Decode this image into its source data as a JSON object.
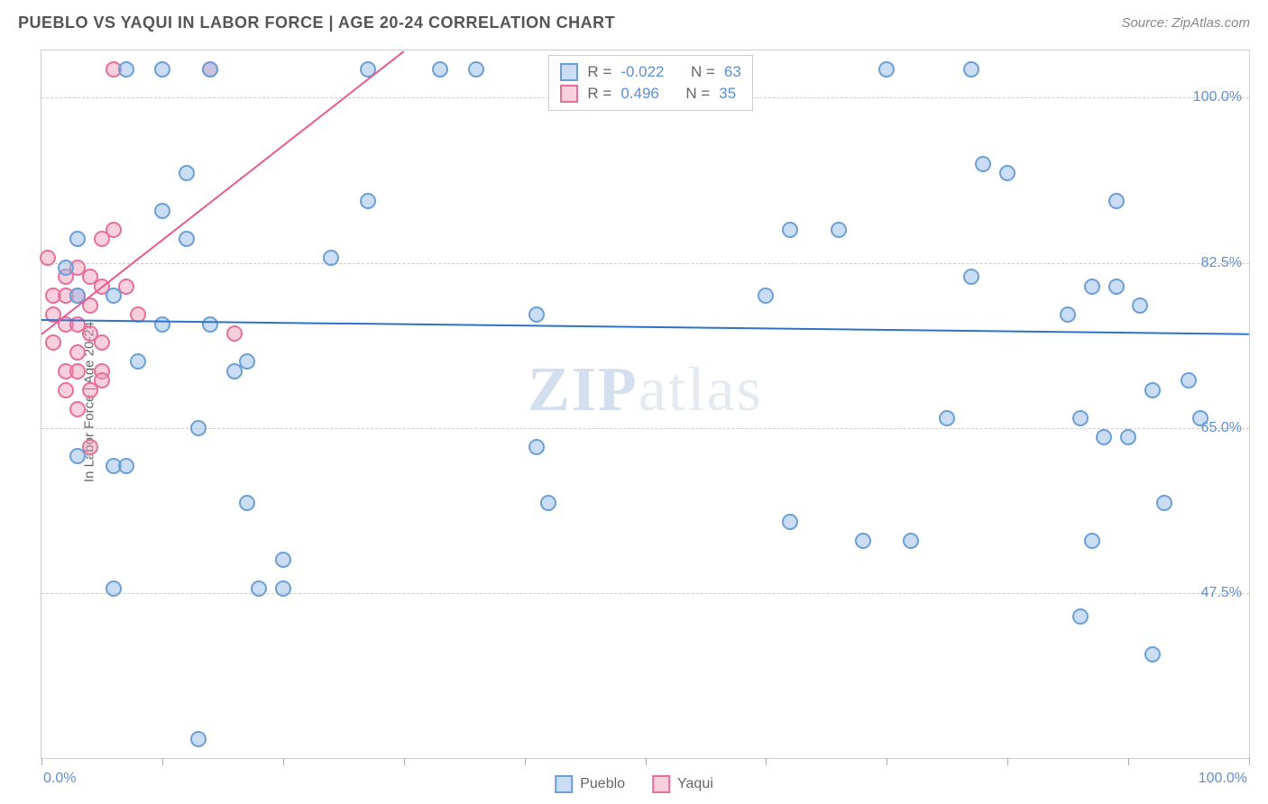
{
  "header": {
    "title": "PUEBLO VS YAQUI IN LABOR FORCE | AGE 20-24 CORRELATION CHART",
    "source": "Source: ZipAtlas.com"
  },
  "axes": {
    "y_label": "In Labor Force | Age 20-24",
    "x_min_label": "0.0%",
    "x_max_label": "100.0%",
    "xlim": [
      0,
      100
    ],
    "ylim": [
      30,
      105
    ],
    "y_ticks": [
      {
        "value": 100.0,
        "label": "100.0%"
      },
      {
        "value": 82.5,
        "label": "82.5%"
      },
      {
        "value": 65.0,
        "label": "65.0%"
      },
      {
        "value": 47.5,
        "label": "47.5%"
      }
    ],
    "x_tick_positions": [
      0,
      10,
      20,
      30,
      40,
      50,
      60,
      70,
      80,
      90,
      100
    ],
    "grid_color": "#cccccc"
  },
  "series": {
    "pueblo": {
      "label": "Pueblo",
      "fill": "rgba(140,180,230,0.45)",
      "stroke": "#6a9fd8",
      "trend_color": "#2d72c9",
      "R": "-0.022",
      "N": "63",
      "trend": {
        "x1": 0,
        "y1": 76.5,
        "x2": 100,
        "y2": 75.0
      },
      "points": [
        {
          "x": 7,
          "y": 103
        },
        {
          "x": 10,
          "y": 103
        },
        {
          "x": 14,
          "y": 103
        },
        {
          "x": 27,
          "y": 103
        },
        {
          "x": 33,
          "y": 103
        },
        {
          "x": 36,
          "y": 103
        },
        {
          "x": 70,
          "y": 103
        },
        {
          "x": 77,
          "y": 103
        },
        {
          "x": 12,
          "y": 92
        },
        {
          "x": 10,
          "y": 88
        },
        {
          "x": 78,
          "y": 93
        },
        {
          "x": 80,
          "y": 92
        },
        {
          "x": 12,
          "y": 85
        },
        {
          "x": 27,
          "y": 89
        },
        {
          "x": 89,
          "y": 89
        },
        {
          "x": 3,
          "y": 85
        },
        {
          "x": 62,
          "y": 86
        },
        {
          "x": 66,
          "y": 86
        },
        {
          "x": 2,
          "y": 82
        },
        {
          "x": 24,
          "y": 83
        },
        {
          "x": 77,
          "y": 81
        },
        {
          "x": 3,
          "y": 79
        },
        {
          "x": 6,
          "y": 79
        },
        {
          "x": 60,
          "y": 79
        },
        {
          "x": 87,
          "y": 80
        },
        {
          "x": 89,
          "y": 80
        },
        {
          "x": 85,
          "y": 77
        },
        {
          "x": 10,
          "y": 76
        },
        {
          "x": 14,
          "y": 76
        },
        {
          "x": 41,
          "y": 77
        },
        {
          "x": 91,
          "y": 78
        },
        {
          "x": 8,
          "y": 72
        },
        {
          "x": 16,
          "y": 71
        },
        {
          "x": 17,
          "y": 72
        },
        {
          "x": 95,
          "y": 70
        },
        {
          "x": 92,
          "y": 69
        },
        {
          "x": 13,
          "y": 65
        },
        {
          "x": 75,
          "y": 66
        },
        {
          "x": 86,
          "y": 66
        },
        {
          "x": 88,
          "y": 64
        },
        {
          "x": 90,
          "y": 64
        },
        {
          "x": 96,
          "y": 66
        },
        {
          "x": 3,
          "y": 62
        },
        {
          "x": 41,
          "y": 63
        },
        {
          "x": 6,
          "y": 61
        },
        {
          "x": 7,
          "y": 61
        },
        {
          "x": 17,
          "y": 57
        },
        {
          "x": 42,
          "y": 57
        },
        {
          "x": 93,
          "y": 57
        },
        {
          "x": 62,
          "y": 55
        },
        {
          "x": 68,
          "y": 53
        },
        {
          "x": 72,
          "y": 53
        },
        {
          "x": 87,
          "y": 53
        },
        {
          "x": 20,
          "y": 51
        },
        {
          "x": 6,
          "y": 48
        },
        {
          "x": 18,
          "y": 48
        },
        {
          "x": 20,
          "y": 48
        },
        {
          "x": 86,
          "y": 45
        },
        {
          "x": 92,
          "y": 41
        },
        {
          "x": 13,
          "y": 32
        }
      ]
    },
    "yaqui": {
      "label": "Yaqui",
      "fill": "rgba(240,150,180,0.45)",
      "stroke": "#e86f9c",
      "trend_color": "#ea5a8f",
      "R": "0.496",
      "N": "35",
      "trend": {
        "x1": 0,
        "y1": 75.0,
        "x2": 30,
        "y2": 105.0
      },
      "points": [
        {
          "x": 6,
          "y": 103
        },
        {
          "x": 14,
          "y": 103
        },
        {
          "x": 6,
          "y": 86
        },
        {
          "x": 5,
          "y": 85
        },
        {
          "x": 0.5,
          "y": 83
        },
        {
          "x": 2,
          "y": 81
        },
        {
          "x": 3,
          "y": 82
        },
        {
          "x": 4,
          "y": 81
        },
        {
          "x": 1,
          "y": 79
        },
        {
          "x": 2,
          "y": 79
        },
        {
          "x": 3,
          "y": 79
        },
        {
          "x": 4,
          "y": 78
        },
        {
          "x": 5,
          "y": 80
        },
        {
          "x": 7,
          "y": 80
        },
        {
          "x": 1,
          "y": 77
        },
        {
          "x": 2,
          "y": 76
        },
        {
          "x": 3,
          "y": 76
        },
        {
          "x": 4,
          "y": 75
        },
        {
          "x": 8,
          "y": 77
        },
        {
          "x": 1,
          "y": 74
        },
        {
          "x": 3,
          "y": 73
        },
        {
          "x": 5,
          "y": 74
        },
        {
          "x": 16,
          "y": 75
        },
        {
          "x": 2,
          "y": 71
        },
        {
          "x": 3,
          "y": 71
        },
        {
          "x": 5,
          "y": 71
        },
        {
          "x": 2,
          "y": 69
        },
        {
          "x": 4,
          "y": 69
        },
        {
          "x": 5,
          "y": 70
        },
        {
          "x": 3,
          "y": 67
        },
        {
          "x": 4,
          "y": 63
        }
      ]
    }
  },
  "style": {
    "point_diameter": 18,
    "point_border": 2,
    "background": "#ffffff"
  },
  "watermark": {
    "zip": "ZIP",
    "rest": "atlas"
  },
  "legend_labels": {
    "R": "R =",
    "N": "N ="
  }
}
